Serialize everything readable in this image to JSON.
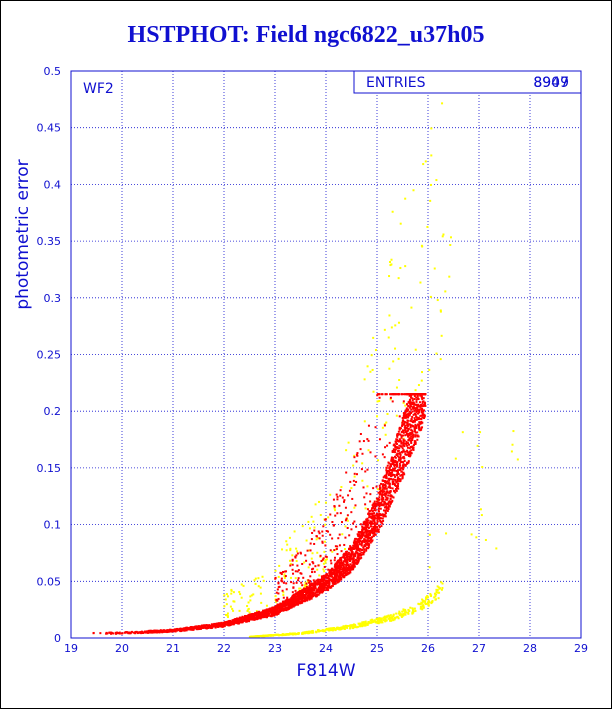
{
  "chart_data": {
    "type": "scatter",
    "title": "HSTPHOT: Field ngc6822_u37h05",
    "xlabel": "F814W",
    "ylabel": "photometric error",
    "xlim": [
      19,
      29
    ],
    "ylim": [
      0,
      0.5
    ],
    "xticks": [
      "19",
      "20",
      "21",
      "22",
      "23",
      "24",
      "25",
      "26",
      "27",
      "28",
      "29"
    ],
    "yticks": [
      "0",
      "0.05",
      "0.1",
      "0.15",
      "0.2",
      "0.25",
      "0.3",
      "0.35",
      "0.4",
      "0.45",
      "0.5"
    ],
    "grid": true,
    "chip_label": "WF2",
    "stats_box": {
      "label": "ENTRIES",
      "values": [
        "8909",
        "8947"
      ]
    },
    "series": [
      {
        "color": "#ff0000",
        "sequence": {
          "x_start": 19.3,
          "x_end": 25.95,
          "err_max": 0.215,
          "points": [
            [
              19.3,
              0.004
            ],
            [
              20,
              0.004
            ],
            [
              21,
              0.006
            ],
            [
              22,
              0.011
            ],
            [
              23,
              0.022
            ],
            [
              24,
              0.045
            ],
            [
              24.5,
              0.065
            ],
            [
              25,
              0.1
            ],
            [
              25.5,
              0.155
            ],
            [
              25.95,
              0.215
            ]
          ]
        },
        "note_points": []
      },
      {
        "color": "#ffff00",
        "sequence": {
          "x_start": 22.5,
          "x_end": 26.3,
          "points": [
            [
              22.5,
              0.001
            ],
            [
              23.5,
              0.004
            ],
            [
              24.5,
              0.01
            ],
            [
              25.3,
              0.018
            ],
            [
              25.8,
              0.027
            ],
            [
              26.1,
              0.036
            ],
            [
              26.3,
              0.045
            ]
          ]
        }
      }
    ]
  }
}
